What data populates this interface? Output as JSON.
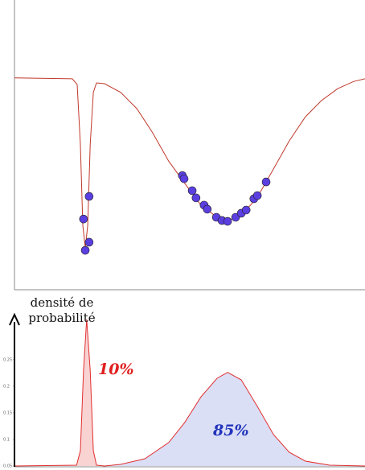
{
  "chart_data": [
    {
      "type": "scatter",
      "xlim": [
        0,
        100
      ],
      "ylim": [
        0,
        100
      ],
      "curve": {
        "color": "#c0392b",
        "x": [
          0,
          16.5,
          17.9,
          18.8,
          19.5,
          20.2,
          20.9,
          21.6,
          22.5,
          23.4,
          25.7,
          30.3,
          34.9,
          39.4,
          44.0,
          48.6,
          53.2,
          57.8,
          60.8,
          64.7,
          69.3,
          73.9,
          78.4,
          83.0,
          87.6,
          92.2,
          96.8,
          100
        ],
        "values": [
          73.1,
          72.8,
          70.8,
          50,
          22.2,
          14.4,
          22.2,
          50,
          68.1,
          71.4,
          71.1,
          68.1,
          62.5,
          54.2,
          44.4,
          36.7,
          29.2,
          25,
          23.9,
          25.6,
          31.9,
          41.7,
          51.4,
          59.7,
          65.3,
          69.4,
          71.9,
          72.8
        ]
      },
      "points": {
        "color": "#5b3fe0",
        "x": [
          19.7,
          21.3,
          20.2,
          21.3,
          47.9,
          48.4,
          50.7,
          51.8,
          54.1,
          55.0,
          57.6,
          59.2,
          60.8,
          63.1,
          64.7,
          66.1,
          68.3,
          69.3,
          71.8
        ],
        "values": [
          24.4,
          32.2,
          13.6,
          16.4,
          39.4,
          38.3,
          34.2,
          31.7,
          29.2,
          27.8,
          25,
          23.9,
          23.6,
          25,
          26.4,
          27.5,
          31.4,
          32.5,
          37.2
        ]
      }
    },
    {
      "type": "area",
      "y_label": "densité de probabilité",
      "xlim": [
        0,
        100
      ],
      "ylim": [
        0.05,
        0.33
      ],
      "yticks": [
        0.05,
        0.1,
        0.15,
        0.2,
        0.25
      ],
      "line_color": "#e03030",
      "fill_colors": [
        "#f9d2d2",
        "#dadff6"
      ],
      "x": [
        0,
        17.7,
        18.8,
        19.7,
        20.6,
        21.6,
        22.5,
        23.4,
        25.7,
        30.3,
        37.2,
        44.0,
        48.6,
        53.2,
        57.8,
        60.8,
        64.7,
        69.3,
        73.9,
        78.4,
        83.0,
        89.9,
        100
      ],
      "values": [
        0.05,
        0.0515,
        0.0788,
        0.23,
        0.326,
        0.23,
        0.0788,
        0.0515,
        0.05,
        0.053,
        0.0636,
        0.094,
        0.132,
        0.18,
        0.215,
        0.226,
        0.212,
        0.162,
        0.109,
        0.0758,
        0.0591,
        0.0515,
        0.05
      ],
      "annotations": [
        {
          "text": "10%",
          "color": "#e02020"
        },
        {
          "text": "85%",
          "color": "#2233bb"
        }
      ]
    }
  ]
}
